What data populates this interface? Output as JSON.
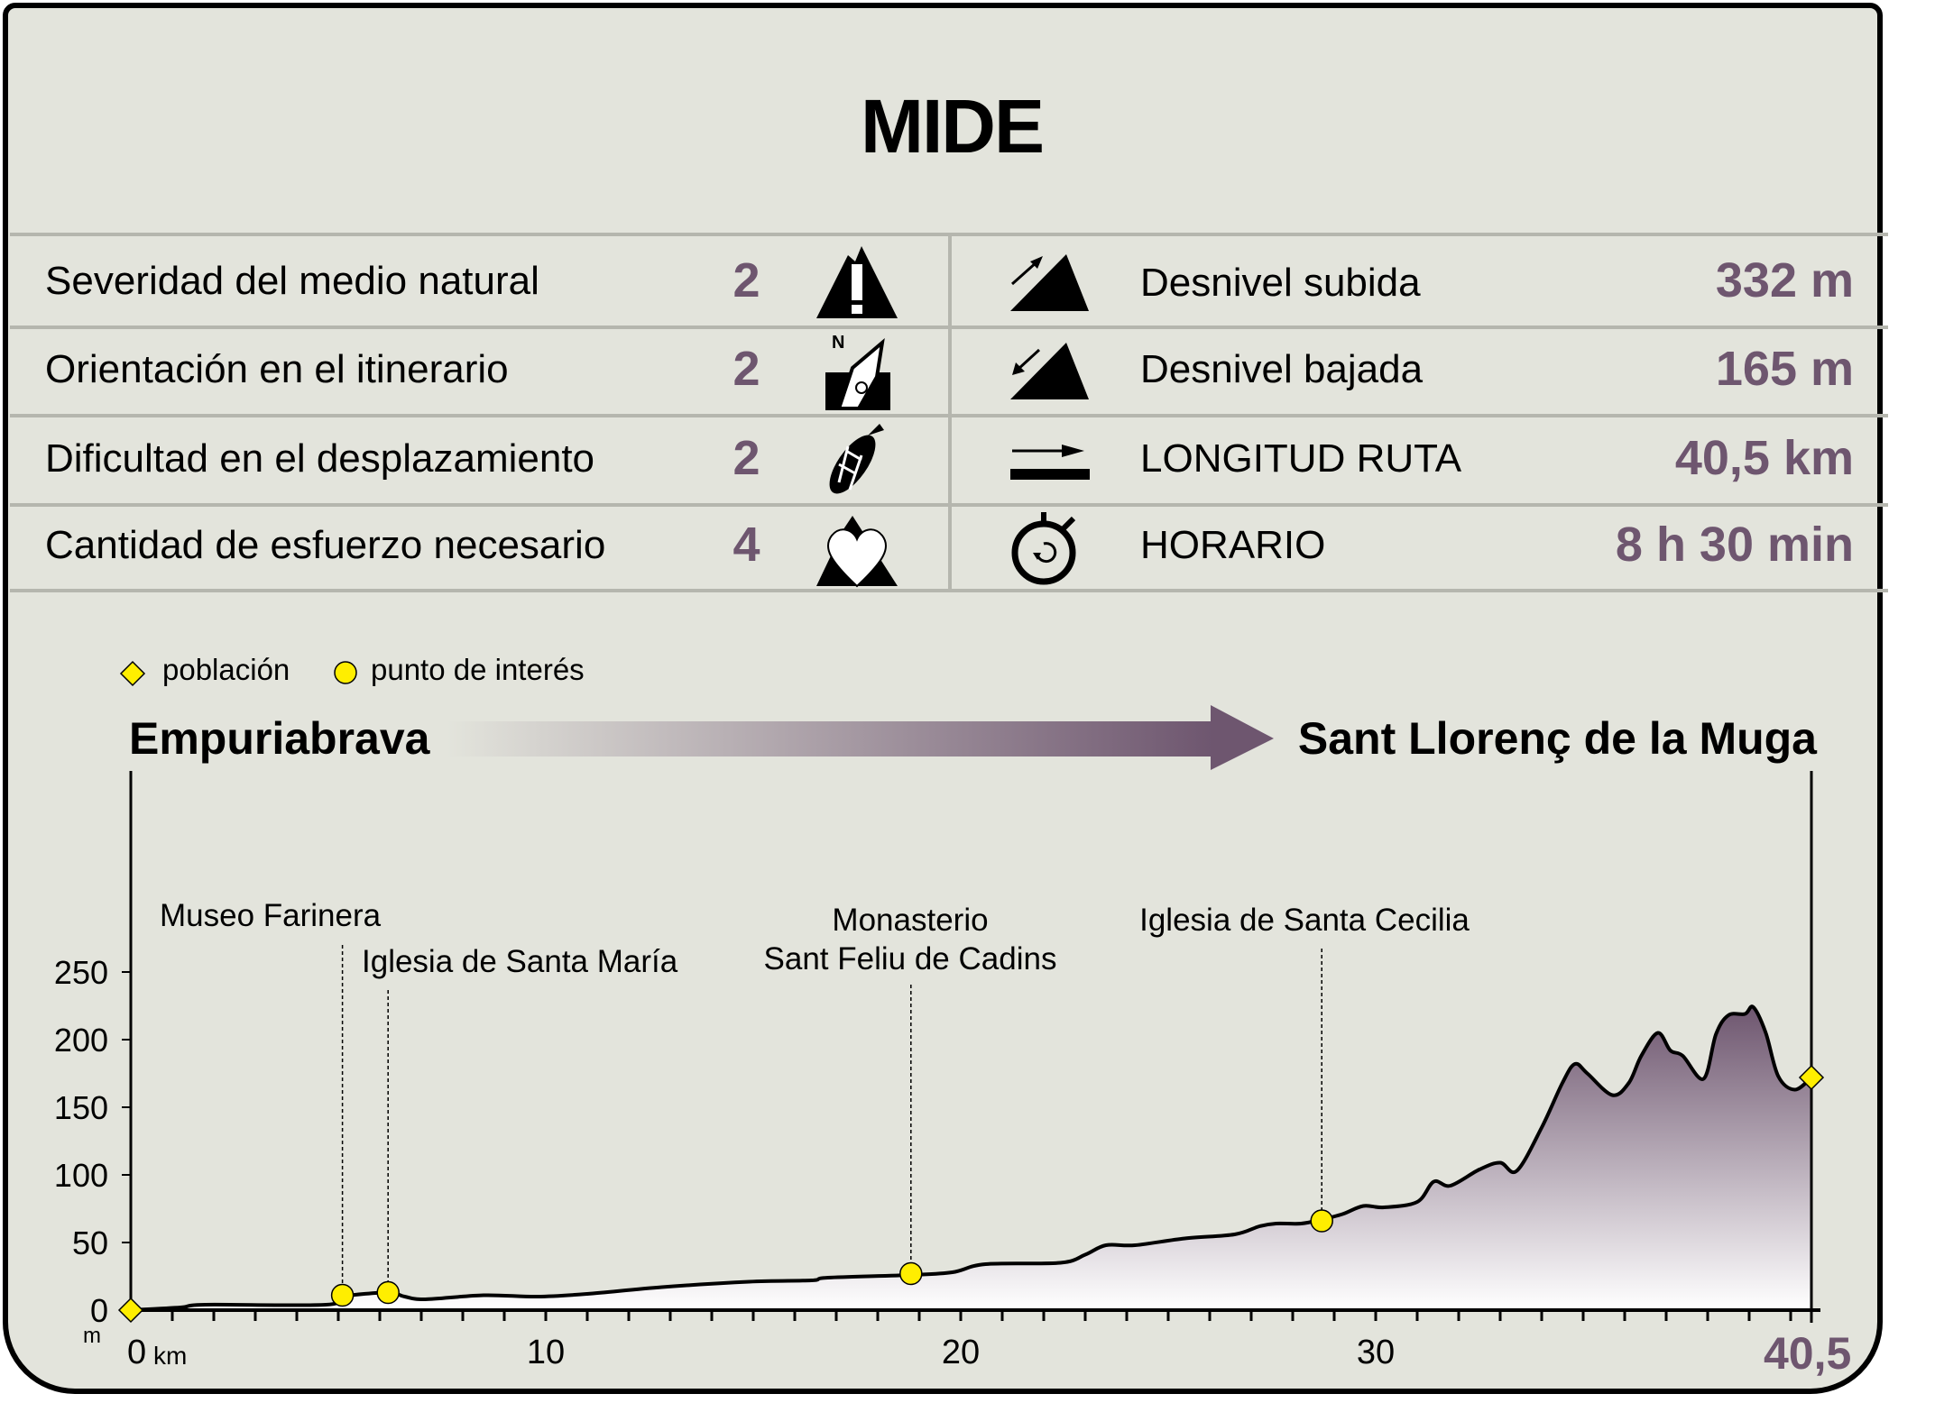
{
  "title": "MIDE",
  "mide": [
    {
      "label": "Severidad del medio natural",
      "value": "2",
      "icon": "mountain-warning-icon"
    },
    {
      "label": "Orientación en el itinerario",
      "value": "2",
      "icon": "compass-north-icon"
    },
    {
      "label": "Dificultad en el desplazamiento",
      "value": "2",
      "icon": "boot-sole-icon"
    },
    {
      "label": "Cantidad de esfuerzo necesario",
      "value": "4",
      "icon": "heart-mountain-icon"
    }
  ],
  "stats": [
    {
      "label": "Desnivel subida",
      "value": "332 m",
      "icon": "ascent-icon"
    },
    {
      "label": "Desnivel bajada",
      "value": "165 m",
      "icon": "descent-icon"
    },
    {
      "label": "LONGITUD RUTA",
      "value": "40,5 km",
      "icon": "distance-arrow-icon"
    },
    {
      "label": "HORARIO",
      "value": "8 h 30 min",
      "icon": "stopwatch-icon"
    }
  ],
  "legend": {
    "town": "población",
    "poi": "punto de interés"
  },
  "route": {
    "start": "Empuriabrava",
    "end": "Sant Llorenç de la Muga"
  },
  "colors": {
    "accent": "#6e566f",
    "background": "#e3e4dc",
    "marker": "#ffee00"
  },
  "chart_data": {
    "type": "area",
    "xlabel": "km",
    "ylabel": "m",
    "xlim": [
      0,
      40.5
    ],
    "ylim": [
      0,
      250
    ],
    "x_ticks": [
      "0",
      "10",
      "20",
      "30"
    ],
    "x_end_label": "40,5",
    "y_ticks": [
      "0",
      "50",
      "100",
      "150",
      "200",
      "250"
    ],
    "profile": [
      [
        0,
        0
      ],
      [
        1.2,
        2
      ],
      [
        1.8,
        4
      ],
      [
        4.7,
        4
      ],
      [
        5.1,
        10
      ],
      [
        6.2,
        13
      ],
      [
        6.6,
        10
      ],
      [
        7.1,
        8
      ],
      [
        8.5,
        11
      ],
      [
        9.8,
        10
      ],
      [
        11,
        12
      ],
      [
        12.8,
        17
      ],
      [
        14.9,
        21
      ],
      [
        16.4,
        22
      ],
      [
        16.8,
        24
      ],
      [
        18.8,
        26
      ],
      [
        19.8,
        28
      ],
      [
        20.6,
        34
      ],
      [
        22.4,
        35
      ],
      [
        23,
        41
      ],
      [
        23.5,
        48
      ],
      [
        24.2,
        48
      ],
      [
        25.4,
        53
      ],
      [
        26.6,
        56
      ],
      [
        27.2,
        62
      ],
      [
        27.6,
        64
      ],
      [
        28.2,
        64
      ],
      [
        28.7,
        67
      ],
      [
        29.2,
        71
      ],
      [
        29.7,
        77
      ],
      [
        30.2,
        76
      ],
      [
        31,
        80
      ],
      [
        31.4,
        95
      ],
      [
        31.8,
        92
      ],
      [
        32.5,
        104
      ],
      [
        33,
        109
      ],
      [
        33.4,
        103
      ],
      [
        34,
        135
      ],
      [
        34.5,
        168
      ],
      [
        34.8,
        182
      ],
      [
        35.1,
        175
      ],
      [
        35.7,
        159
      ],
      [
        36.1,
        168
      ],
      [
        36.4,
        188
      ],
      [
        36.8,
        205
      ],
      [
        37.1,
        192
      ],
      [
        37.4,
        188
      ],
      [
        37.9,
        171
      ],
      [
        38.2,
        204
      ],
      [
        38.5,
        218
      ],
      [
        38.9,
        219
      ],
      [
        39.1,
        224
      ],
      [
        39.4,
        205
      ],
      [
        39.7,
        173
      ],
      [
        40.1,
        163
      ],
      [
        40.5,
        172
      ]
    ],
    "towns": [
      {
        "name": "Empuriabrava",
        "km": 0,
        "m": 0
      },
      {
        "name": "Sant Llorenç de la Muga",
        "km": 40.5,
        "m": 172
      }
    ],
    "points_of_interest": [
      {
        "name": "Museo Farinera",
        "km": 5.1,
        "m": 11
      },
      {
        "name": "Iglesia de Santa María",
        "km": 6.2,
        "m": 13
      },
      {
        "name": "Monasterio\nSant Feliu de Cadins",
        "line1": "Monasterio",
        "line2": "Sant Feliu de Cadins",
        "km": 18.8,
        "m": 27
      },
      {
        "name": "Iglesia de Santa Cecilia",
        "km": 28.7,
        "m": 66
      }
    ]
  }
}
